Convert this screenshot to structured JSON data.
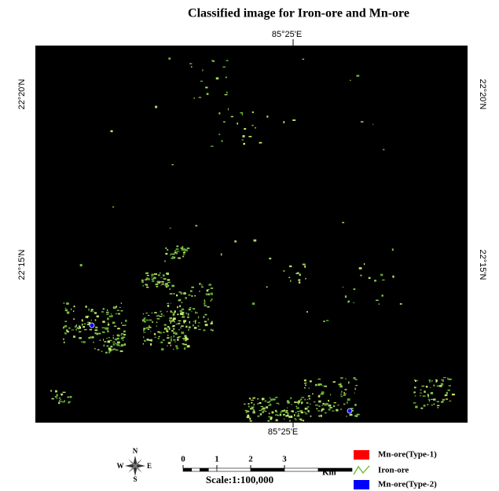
{
  "title": "Classified image for Iron-ore and Mn-ore",
  "map": {
    "top_label": "85°25'E",
    "bottom_label": "85°25'E",
    "left_labels": [
      "22°20'N",
      "22°15'N"
    ],
    "right_labels": [
      "22°20'N",
      "22°15'N"
    ]
  },
  "compass": {
    "n": "N",
    "s": "S",
    "w": "W",
    "e": "E"
  },
  "scale": {
    "ticks": [
      0,
      1,
      2,
      3
    ],
    "unit": "Km",
    "text": "Scale:1:100,000"
  },
  "legend": [
    {
      "label": "Mn-ore(Type-1)",
      "color": "#ff0000"
    },
    {
      "label": "Iron-ore",
      "color": "#7ac143"
    },
    {
      "label": "Mn-ore(Type-2)",
      "color": "#0000ff"
    }
  ]
}
